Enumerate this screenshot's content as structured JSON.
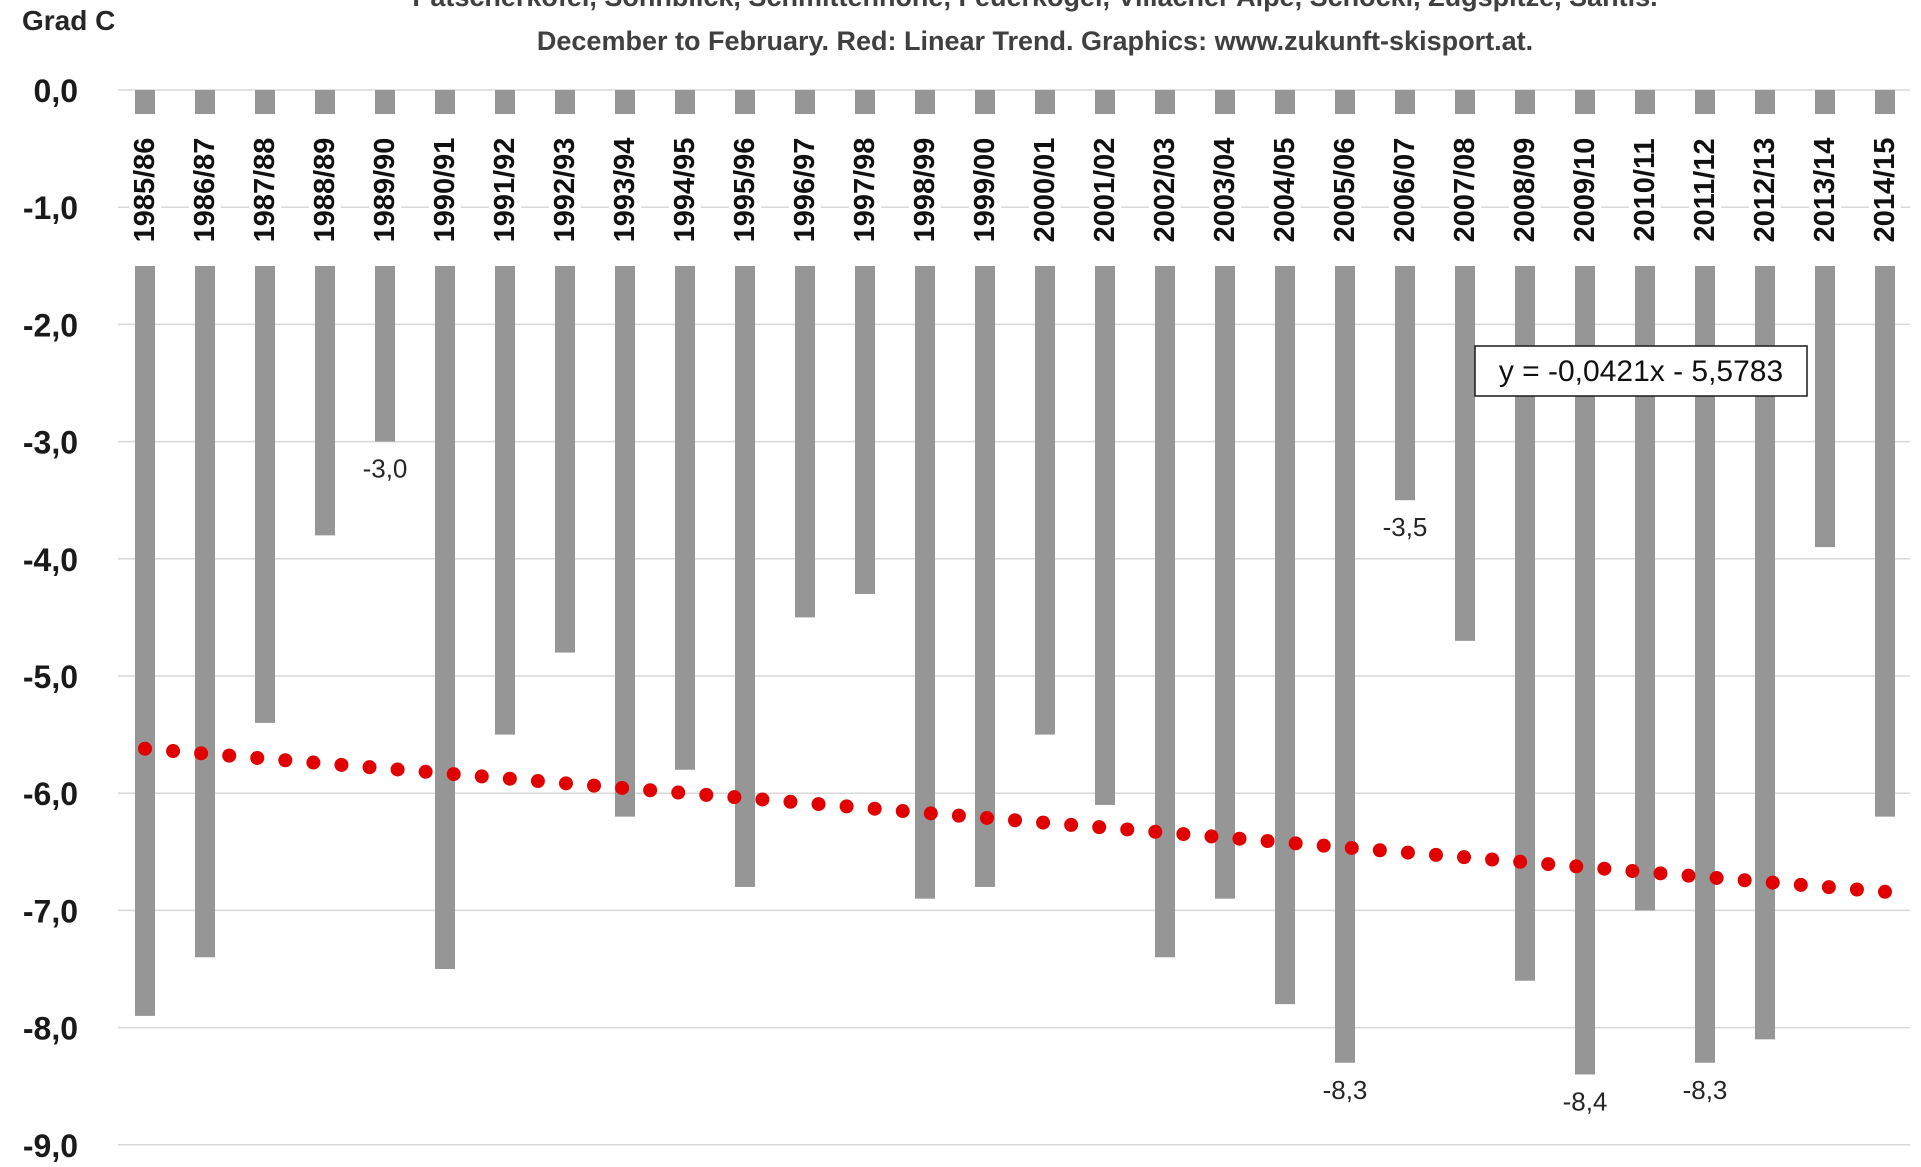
{
  "chart_data": {
    "type": "bar",
    "title_lines": [
      "Patscherkofel, Sonnblick, Schmittenhöhe, Feuerkogel, Villacher Alpe, Schöckl, Zugspitze, Säntis.",
      "December to February. Red: Linear Trend. Graphics: www.zukunft-skisport.at."
    ],
    "ylabel": "Grad C",
    "ylim": [
      -9.0,
      0.0
    ],
    "yticks": [
      "0,0",
      "-1,0",
      "-2,0",
      "-3,0",
      "-4,0",
      "-5,0",
      "-6,0",
      "-7,0",
      "-8,0",
      "-9,0"
    ],
    "grid": true,
    "categories": [
      "1985/86",
      "1986/87",
      "1987/88",
      "1988/89",
      "1989/90",
      "1990/91",
      "1991/92",
      "1992/93",
      "1993/94",
      "1994/95",
      "1995/96",
      "1996/97",
      "1997/98",
      "1998/99",
      "1999/00",
      "2000/01",
      "2001/02",
      "2002/03",
      "2003/04",
      "2004/05",
      "2005/06",
      "2006/07",
      "2007/08",
      "2008/09",
      "2009/10",
      "2010/11",
      "2011/12",
      "2012/13",
      "2013/14",
      "2014/15"
    ],
    "values": [
      -7.9,
      -7.4,
      -5.4,
      -3.8,
      -3.0,
      -7.5,
      -5.5,
      -4.8,
      -6.2,
      -5.8,
      -6.8,
      -4.5,
      -4.3,
      -6.9,
      -6.8,
      -5.5,
      -6.1,
      -7.4,
      -6.9,
      -7.8,
      -8.3,
      -3.5,
      -4.7,
      -7.6,
      -8.4,
      -7.0,
      -8.3,
      -8.1,
      -3.9,
      -6.2
    ],
    "data_labels": [
      {
        "category": "1989/90",
        "text": "-3,0"
      },
      {
        "category": "2006/07",
        "text": "-3,5"
      },
      {
        "category": "2005/06",
        "text": "-8,3"
      },
      {
        "category": "2009/10",
        "text": "-8,4"
      },
      {
        "category": "2011/12",
        "text": "-8,3"
      }
    ],
    "trend": {
      "slope": -0.0421,
      "intercept": -5.5783,
      "equation_text": "y = -0,0421x - 5,5783",
      "color": "#e00000"
    },
    "bar_color": "#969696",
    "grid_color": "#d9d9d9"
  }
}
